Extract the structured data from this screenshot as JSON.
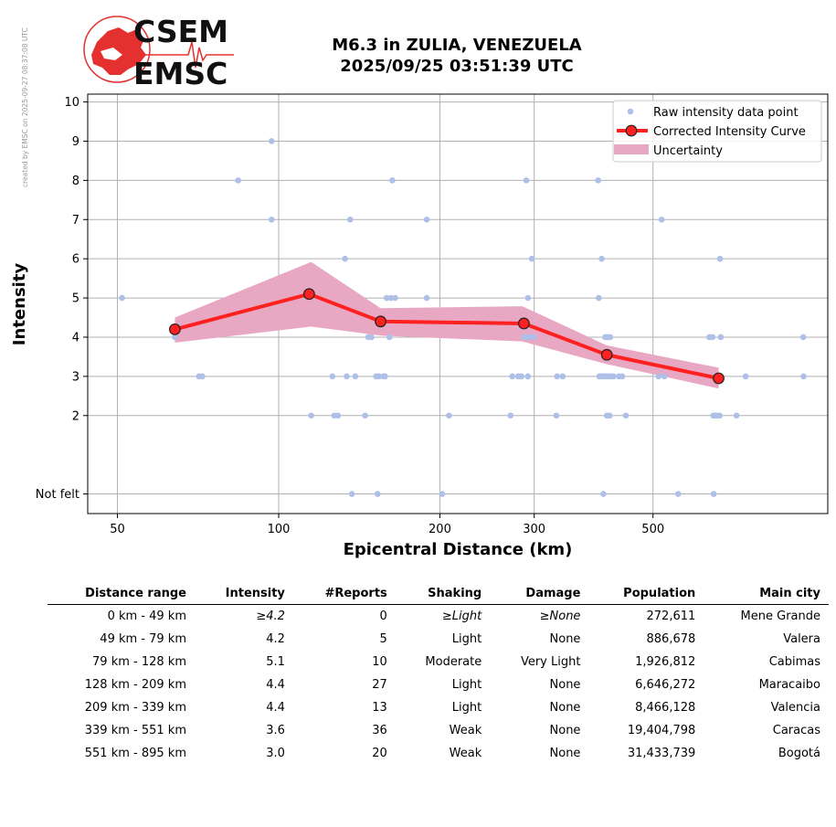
{
  "page": {
    "side_note": "created by EMSC on 2025-09-27 08:37:08 UTC",
    "logo_top": "CSEM",
    "logo_bottom": "EMSC",
    "title_line1": "M6.3 in ZULIA, VENEZUELA",
    "title_line2": "2025/09/25 03:51:39 UTC"
  },
  "chart_data": {
    "type": "scatter",
    "xlabel": "Epicentral Distance (km)",
    "ylabel": "Intensity",
    "xscale": "log",
    "xlim": [
      44,
      1060
    ],
    "ylim": [
      -0.5,
      10.2
    ],
    "x_ticks": [
      50,
      100,
      200,
      300,
      500
    ],
    "y_ticks": [
      {
        "value": 0,
        "label": "Not felt"
      },
      {
        "value": 2,
        "label": "2"
      },
      {
        "value": 3,
        "label": "3"
      },
      {
        "value": 4,
        "label": "4"
      },
      {
        "value": 5,
        "label": "5"
      },
      {
        "value": 6,
        "label": "6"
      },
      {
        "value": 7,
        "label": "7"
      },
      {
        "value": 8,
        "label": "8"
      },
      {
        "value": 9,
        "label": "9"
      },
      {
        "value": 10,
        "label": "10"
      }
    ],
    "grid": true,
    "legend_position": "top-right",
    "legend": [
      {
        "label": "Raw intensity data point",
        "color": "#aebfe8"
      },
      {
        "label": "Corrected Intensity Curve",
        "color": "#ff2020"
      },
      {
        "label": "Uncertainty",
        "color": "#e8a8c4"
      }
    ],
    "colors": {
      "raw": "#aebfe8",
      "curve": "#ff2020",
      "band": "#e8a8c4"
    },
    "raw_points": [
      [
        51,
        5
      ],
      [
        64,
        4
      ],
      [
        71,
        3
      ],
      [
        72,
        3
      ],
      [
        84,
        8
      ],
      [
        97,
        9
      ],
      [
        97,
        7
      ],
      [
        115,
        2
      ],
      [
        126,
        3
      ],
      [
        127,
        2
      ],
      [
        129,
        2
      ],
      [
        133,
        6
      ],
      [
        134,
        3
      ],
      [
        136,
        7
      ],
      [
        137,
        0
      ],
      [
        139,
        3
      ],
      [
        145,
        2
      ],
      [
        147,
        4
      ],
      [
        149,
        4
      ],
      [
        152,
        3
      ],
      [
        153,
        0
      ],
      [
        154,
        3
      ],
      [
        157,
        3
      ],
      [
        158,
        3
      ],
      [
        159,
        5
      ],
      [
        161,
        4
      ],
      [
        162,
        5
      ],
      [
        163,
        8
      ],
      [
        165,
        5
      ],
      [
        189,
        7
      ],
      [
        189,
        5
      ],
      [
        202,
        0
      ],
      [
        208,
        2
      ],
      [
        271,
        2
      ],
      [
        273,
        3
      ],
      [
        280,
        3
      ],
      [
        284,
        3
      ],
      [
        287,
        4
      ],
      [
        290,
        8
      ],
      [
        291,
        4
      ],
      [
        292,
        3
      ],
      [
        292,
        5
      ],
      [
        294,
        4
      ],
      [
        297,
        6
      ],
      [
        300,
        4
      ],
      [
        330,
        2
      ],
      [
        331,
        3
      ],
      [
        339,
        3
      ],
      [
        395,
        8
      ],
      [
        396,
        5
      ],
      [
        397,
        3
      ],
      [
        399,
        3
      ],
      [
        401,
        6
      ],
      [
        402,
        3
      ],
      [
        404,
        0
      ],
      [
        406,
        3
      ],
      [
        407,
        4
      ],
      [
        409,
        3
      ],
      [
        410,
        2
      ],
      [
        411,
        4
      ],
      [
        413,
        3
      ],
      [
        415,
        2
      ],
      [
        416,
        4
      ],
      [
        418,
        3
      ],
      [
        422,
        3
      ],
      [
        432,
        3
      ],
      [
        438,
        3
      ],
      [
        445,
        2
      ],
      [
        512,
        3
      ],
      [
        519,
        7
      ],
      [
        525,
        3
      ],
      [
        557,
        0
      ],
      [
        637,
        4
      ],
      [
        646,
        4
      ],
      [
        648,
        2
      ],
      [
        649,
        0
      ],
      [
        651,
        2
      ],
      [
        655,
        2
      ],
      [
        659,
        2
      ],
      [
        666,
        2
      ],
      [
        667,
        6
      ],
      [
        669,
        4
      ],
      [
        716,
        2
      ],
      [
        745,
        3
      ],
      [
        954,
        4
      ],
      [
        955,
        3
      ]
    ],
    "curve": [
      [
        64,
        4.2
      ],
      [
        114,
        5.1
      ],
      [
        155,
        4.4
      ],
      [
        287,
        4.35
      ],
      [
        410,
        3.55
      ],
      [
        663,
        2.95
      ]
    ],
    "band_upper": [
      [
        64,
        4.5
      ],
      [
        115,
        5.92
      ],
      [
        155,
        4.74
      ],
      [
        285,
        4.79
      ],
      [
        410,
        3.79
      ],
      [
        663,
        3.22
      ]
    ],
    "band_lower": [
      [
        64,
        3.86
      ],
      [
        115,
        4.27
      ],
      [
        155,
        4.04
      ],
      [
        285,
        3.89
      ],
      [
        410,
        3.31
      ],
      [
        663,
        2.69
      ]
    ]
  },
  "table": {
    "headers": [
      "Distance range",
      "Intensity",
      "#Reports",
      "Shaking",
      "Damage",
      "Population",
      "Main city"
    ],
    "rows": [
      [
        "0 km -   49 km",
        "≥4.2",
        "0",
        "≥Light",
        "≥None",
        "272,611",
        "Mene Grande"
      ],
      [
        "49 km -   79 km",
        "4.2",
        "5",
        "Light",
        "None",
        "886,678",
        "Valera"
      ],
      [
        "79 km -  128 km",
        "5.1",
        "10",
        "Moderate",
        "Very Light",
        "1,926,812",
        "Cabimas"
      ],
      [
        "128 km -  209 km",
        "4.4",
        "27",
        "Light",
        "None",
        "6,646,272",
        "Maracaibo"
      ],
      [
        "209 km -  339 km",
        "4.4",
        "13",
        "Light",
        "None",
        "8,466,128",
        "Valencia"
      ],
      [
        "339 km -  551 km",
        "3.6",
        "36",
        "Weak",
        "None",
        "19,404,798",
        "Caracas"
      ],
      [
        "551 km -  895 km",
        "3.0",
        "20",
        "Weak",
        "None",
        "31,433,739",
        "Bogotá"
      ]
    ]
  }
}
